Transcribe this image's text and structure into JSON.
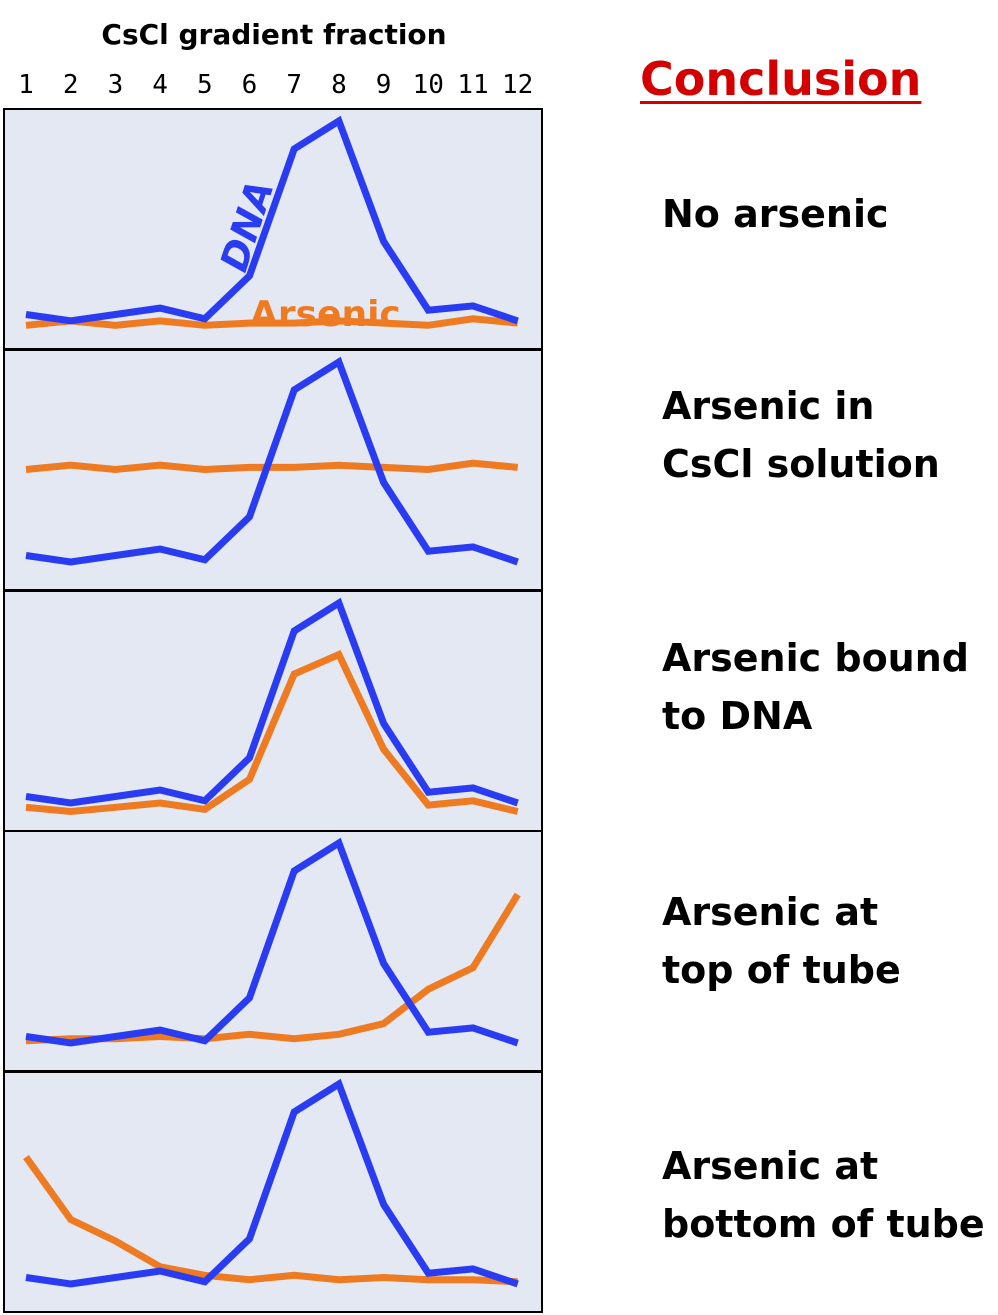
{
  "chart_data": {
    "type": "line",
    "title": "CsCl gradient fraction",
    "conclusion_header": "Conclusion",
    "x": [
      "1",
      "2",
      "3",
      "4",
      "5",
      "6",
      "7",
      "8",
      "9",
      "10",
      "11",
      "12"
    ],
    "ylim": [
      0,
      100
    ],
    "colors": {
      "DNA": "#2a3cf2",
      "Arsenic": "#ee7b22",
      "panel_bg": "#e3e8f3"
    },
    "panels": [
      {
        "conclusion": [
          "No arsenic"
        ],
        "labels": {
          "DNA": "DNA",
          "Arsenic": "Arsenic"
        },
        "series": [
          {
            "name": "DNA",
            "values": [
              10,
              7,
              10,
              13,
              8,
              28,
              87,
              100,
              44,
              12,
              14,
              7
            ]
          },
          {
            "name": "Arsenic",
            "values": [
              5,
              7,
              5,
              7,
              5,
              6,
              6,
              7,
              6,
              5,
              8,
              6
            ]
          }
        ]
      },
      {
        "conclusion": [
          "Arsenic in",
          "CsCl solution"
        ],
        "series": [
          {
            "name": "DNA",
            "values": [
              10,
              7,
              10,
              13,
              8,
              28,
              87,
              100,
              44,
              12,
              14,
              7
            ]
          },
          {
            "name": "Arsenic",
            "values": [
              50,
              52,
              50,
              52,
              50,
              51,
              51,
              52,
              51,
              50,
              53,
              51
            ]
          }
        ]
      },
      {
        "conclusion": [
          "Arsenic bound",
          "to DNA"
        ],
        "series": [
          {
            "name": "DNA",
            "values": [
              10,
              7,
              10,
              13,
              8,
              28,
              87,
              100,
              44,
              12,
              14,
              7
            ]
          },
          {
            "name": "Arsenic",
            "values": [
              5,
              3,
              5,
              7,
              4,
              18,
              67,
              76,
              32,
              6,
              8,
              3
            ]
          }
        ]
      },
      {
        "conclusion": [
          "Arsenic at",
          "top of tube"
        ],
        "series": [
          {
            "name": "DNA",
            "values": [
              10,
              7,
              10,
              13,
              8,
              28,
              87,
              100,
              44,
              12,
              14,
              7
            ]
          },
          {
            "name": "Arsenic",
            "values": [
              8,
              9,
              9,
              10,
              9,
              11,
              9,
              11,
              16,
              32,
              42,
              76
            ]
          }
        ]
      },
      {
        "conclusion": [
          "Arsenic at",
          "bottom of tube"
        ],
        "series": [
          {
            "name": "DNA",
            "values": [
              10,
              7,
              10,
              13,
              8,
              28,
              87,
              100,
              44,
              12,
              14,
              7
            ]
          },
          {
            "name": "Arsenic",
            "values": [
              66,
              37,
              27,
              15,
              11,
              9,
              11,
              9,
              10,
              9,
              9,
              8
            ]
          }
        ]
      }
    ]
  }
}
